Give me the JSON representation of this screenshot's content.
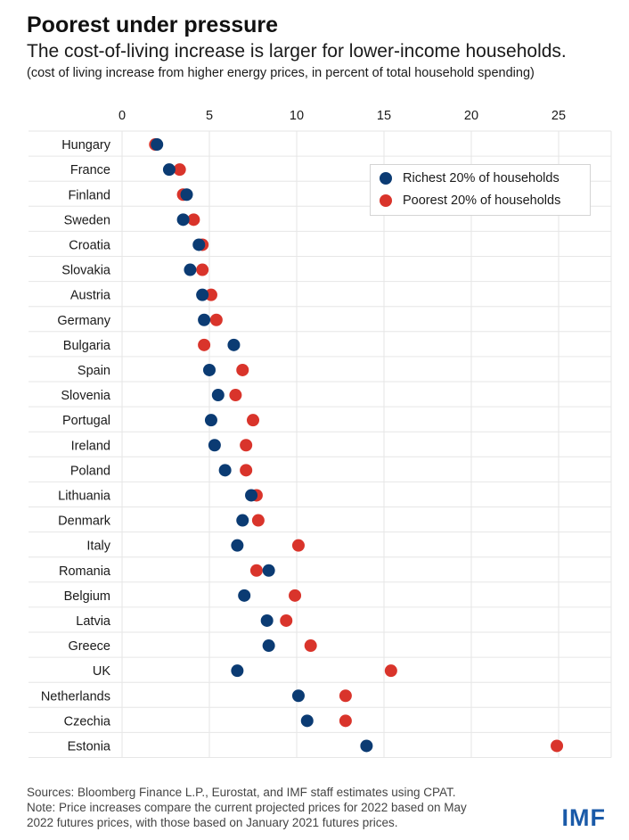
{
  "header": {
    "title": "Poorest under pressure",
    "subtitle": "The cost-of-living increase is larger for lower-income households.",
    "note": "(cost of living increase from higher energy prices, in percent of total household spending)"
  },
  "footer": {
    "sources": "Sources: Bloomberg Finance L.P., Eurostat, and IMF staff estimates using CPAT.",
    "note_line1": "Note: Price increases compare the current projected prices for 2022 based on May",
    "note_line2": "2022 futures prices, with those based on January 2021 futures prices.",
    "logo": "IMF"
  },
  "colors": {
    "richest": "#0b3b73",
    "poorest": "#d9342b",
    "grid": "#e6e6e6",
    "logo": "#1a5aa8"
  },
  "chart_data": {
    "type": "scatter",
    "title": "Poorest under pressure",
    "subtitle": "The cost-of-living increase is larger for lower-income households.",
    "xlabel": "",
    "ylabel": "",
    "xlim": [
      0,
      28
    ],
    "xticks": [
      0,
      5,
      10,
      15,
      20,
      25
    ],
    "grid": true,
    "legend_position": "top-right",
    "categories": [
      "Hungary",
      "France",
      "Finland",
      "Sweden",
      "Croatia",
      "Slovakia",
      "Austria",
      "Germany",
      "Bulgaria",
      "Spain",
      "Slovenia",
      "Portugal",
      "Ireland",
      "Poland",
      "Lithuania",
      "Denmark",
      "Italy",
      "Romania",
      "Belgium",
      "Latvia",
      "Greece",
      "UK",
      "Netherlands",
      "Czechia",
      "Estonia"
    ],
    "series": [
      {
        "name": "Poorest 20% of households",
        "key": "poorest",
        "values": [
          1.9,
          3.3,
          3.5,
          4.1,
          4.6,
          4.6,
          5.1,
          5.4,
          4.7,
          6.9,
          6.5,
          7.5,
          7.1,
          7.1,
          7.7,
          7.8,
          10.1,
          7.7,
          9.9,
          9.4,
          10.8,
          15.4,
          12.8,
          12.8,
          24.9
        ]
      },
      {
        "name": "Richest 20% of households",
        "key": "richest",
        "values": [
          2.0,
          2.7,
          3.7,
          3.5,
          4.4,
          3.9,
          4.6,
          4.7,
          6.4,
          5.0,
          5.5,
          5.1,
          5.3,
          5.9,
          7.4,
          6.9,
          6.6,
          8.4,
          7.0,
          8.3,
          8.4,
          6.6,
          10.1,
          10.6,
          14.0
        ]
      }
    ]
  }
}
